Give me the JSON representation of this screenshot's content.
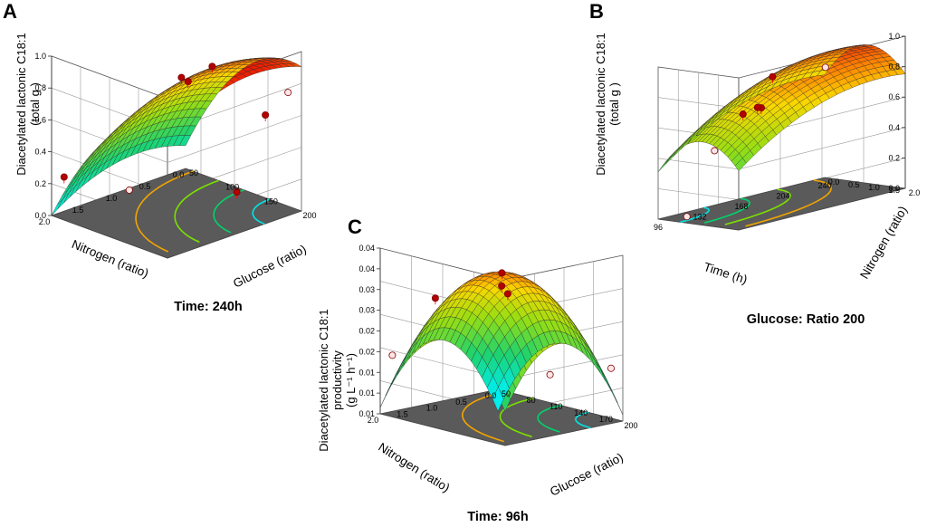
{
  "chart_data": [
    {
      "panel": "A",
      "type": "surface3d",
      "zlabel": "Diacetylated lactonic C18:1 (total g )",
      "zlabel_lines": [
        "Diacetylated lactonic C18:1",
        "(total g )"
      ],
      "zlim": [
        0.0,
        1.0
      ],
      "z_ticks": [
        "0.0",
        "0.2",
        "0.4",
        "0.6",
        "0.8",
        "1.0"
      ],
      "xlabel": "Glucose (ratio)",
      "x_ticks": [
        "50",
        "100",
        "150",
        "200"
      ],
      "ylabel": "Nitrogen (ratio)",
      "y_ticks": [
        "0.0",
        "0.5",
        "1.0",
        "1.5",
        "2.0"
      ],
      "caption": "Time: 240h",
      "surface_range": [
        0.28,
        0.93
      ],
      "points_filled": [
        0.93,
        0.87,
        0.84,
        0.68,
        0.38,
        0.1
      ],
      "points_open": [
        0.78,
        0.25
      ]
    },
    {
      "panel": "B",
      "type": "surface3d",
      "zlabel": "Diacetylated lactonic C18:1 (total g )",
      "zlabel_lines": [
        "Diacetylated lactonic C18:1",
        "(total g )"
      ],
      "zlim": [
        0.0,
        1.0
      ],
      "z_ticks": [
        "0.0",
        "0.2",
        "0.4",
        "0.6",
        "0.8",
        "1.0"
      ],
      "xlabel": "Time (h)",
      "x_ticks": [
        "240",
        "204",
        "168",
        "132",
        "96"
      ],
      "ylabel": "Nitrogen (ratio)",
      "y_ticks": [
        "0.0",
        "0.5",
        "1.0",
        "1.5",
        "2.0"
      ],
      "caption": "Glucose: Ratio 200",
      "surface_range": [
        0.1,
        0.88
      ],
      "points_filled": [
        0.87,
        0.84,
        0.72,
        0.62
      ],
      "points_open": [
        0.71,
        0.5,
        0.05
      ]
    },
    {
      "panel": "C",
      "type": "surface3d",
      "zlabel": "Diacetylated lactonic C18:1 productivity (g L-1 h-1)",
      "zlabel_lines": [
        "Diacetylated lactonic C18:1",
        "productivity",
        "(g L⁻¹ h⁻¹)"
      ],
      "z_ticks": [
        "0.01",
        "0.01",
        "0.01",
        "0.02",
        "0.02",
        "0.03",
        "0.03",
        "0.04",
        "0.04"
      ],
      "xlabel": "Glucose (ratio)",
      "x_ticks": [
        "50",
        "80",
        "110",
        "140",
        "170",
        "200"
      ],
      "ylabel": "Nitrogen (ratio)",
      "y_ticks": [
        "0.0",
        "0.5",
        "1.0",
        "1.5",
        "2.0"
      ],
      "caption": "Time: 96h",
      "surface_range": [
        0.007,
        0.04
      ],
      "points_filled": [
        0.04,
        0.036,
        0.034,
        0.033
      ],
      "points_open": [
        0.015,
        0.015,
        0.012
      ]
    }
  ]
}
